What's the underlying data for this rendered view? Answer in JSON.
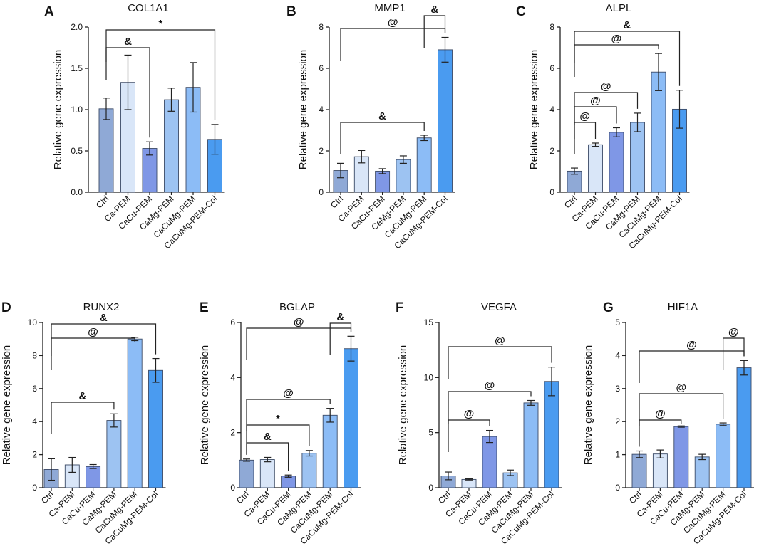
{
  "colors": [
    "#8FA9D6",
    "#D9E6F8",
    "#7F97E6",
    "#9DC3F2",
    "#8CBCF6",
    "#4A9BF0"
  ],
  "categories": [
    "Ctrl",
    "Ca-PEM",
    "CaCu-PEM",
    "CaMg-PEM",
    "CaCuMg-PEM",
    "CaCuMg-PEM-Col"
  ],
  "ylabel": "Relative gene expression",
  "chart_data": [
    {
      "panel": "A",
      "title": "COL1A1",
      "type": "bar",
      "categories": [
        "Ctrl",
        "Ca-PEM",
        "CaCu-PEM",
        "CaMg-PEM",
        "CaCuMg-PEM",
        "CaCuMg-PEM-Col"
      ],
      "values": [
        1.01,
        1.33,
        0.53,
        1.12,
        1.27,
        0.64
      ],
      "errors": [
        0.13,
        0.33,
        0.08,
        0.14,
        0.3,
        0.18
      ],
      "ylim": [
        0,
        2.0
      ],
      "yticks": [
        "0.0",
        "0.5",
        "1.0",
        "1.5",
        "2.0"
      ],
      "xlabel": "",
      "ylabel": "Relative gene expression",
      "significance": [
        {
          "from": 0,
          "to": 5,
          "label": "*"
        },
        {
          "from": 0,
          "to": 2,
          "label": "&"
        }
      ]
    },
    {
      "panel": "B",
      "title": "MMP1",
      "type": "bar",
      "categories": [
        "Ctrl",
        "Ca-PEM",
        "CaCu-PEM",
        "CaMg-PEM",
        "CaCuMg-PEM",
        "CaCuMg-PEM-Col"
      ],
      "values": [
        1.05,
        1.72,
        1.02,
        1.58,
        2.63,
        6.9
      ],
      "errors": [
        0.35,
        0.3,
        0.12,
        0.18,
        0.13,
        0.6
      ],
      "ylim": [
        0,
        8
      ],
      "yticks": [
        "0",
        "2",
        "4",
        "6",
        "8"
      ],
      "xlabel": "",
      "ylabel": "Relative gene expression",
      "significance": [
        {
          "from": 0,
          "to": 5,
          "label": "@"
        },
        {
          "from": 0,
          "to": 4,
          "label": "&"
        },
        {
          "from": 4,
          "to": 5,
          "label": "&"
        }
      ]
    },
    {
      "panel": "C",
      "title": "ALPL",
      "type": "bar",
      "categories": [
        "Ctrl",
        "Ca-PEM",
        "CaCu-PEM",
        "CaMg-PEM",
        "CaCuMg-PEM",
        "CaCuMg-PEM-Col"
      ],
      "values": [
        1.02,
        2.3,
        2.9,
        3.38,
        5.82,
        4.02
      ],
      "errors": [
        0.15,
        0.08,
        0.22,
        0.45,
        0.9,
        0.92
      ],
      "ylim": [
        0,
        8
      ],
      "yticks": [
        "0",
        "2",
        "4",
        "6",
        "8"
      ],
      "xlabel": "",
      "ylabel": "Relative gene expression",
      "significance": [
        {
          "from": 0,
          "to": 5,
          "label": "&"
        },
        {
          "from": 0,
          "to": 4,
          "label": "@"
        },
        {
          "from": 0,
          "to": 3,
          "label": "@"
        },
        {
          "from": 0,
          "to": 2,
          "label": "@"
        },
        {
          "from": 0,
          "to": 1,
          "label": "@"
        }
      ]
    },
    {
      "panel": "D",
      "title": "RUNX2",
      "type": "bar",
      "categories": [
        "Ctrl",
        "Ca-PEM",
        "CaCu-PEM",
        "CaMg-PEM",
        "CaCuMg-PEM",
        "CaCuMg-PEM-Col"
      ],
      "values": [
        1.1,
        1.38,
        1.28,
        4.07,
        9.0,
        7.1
      ],
      "errors": [
        0.65,
        0.45,
        0.12,
        0.4,
        0.1,
        0.72
      ],
      "ylim": [
        0,
        10
      ],
      "yticks": [
        "0",
        "2",
        "4",
        "6",
        "8",
        "10"
      ],
      "xlabel": "",
      "ylabel": "Relative gene expression",
      "significance": [
        {
          "from": 0,
          "to": 5,
          "label": "&"
        },
        {
          "from": 0,
          "to": 4,
          "label": "@"
        },
        {
          "from": 0,
          "to": 3,
          "label": "&"
        }
      ]
    },
    {
      "panel": "E",
      "title": "BGLAP",
      "type": "bar",
      "categories": [
        "Ctrl",
        "Ca-PEM",
        "CaCu-PEM",
        "CaMg-PEM",
        "CaCuMg-PEM",
        "CaCuMg-PEM-Col"
      ],
      "values": [
        1.0,
        1.02,
        0.42,
        1.25,
        2.63,
        5.05
      ],
      "errors": [
        0.04,
        0.08,
        0.04,
        0.1,
        0.25,
        0.45
      ],
      "ylim": [
        0,
        6
      ],
      "yticks": [
        "0",
        "2",
        "4",
        "6"
      ],
      "xlabel": "",
      "ylabel": "Relative gene expression",
      "significance": [
        {
          "from": 0,
          "to": 5,
          "label": "@"
        },
        {
          "from": 4,
          "to": 5,
          "label": "&"
        },
        {
          "from": 0,
          "to": 4,
          "label": "@"
        },
        {
          "from": 0,
          "to": 3,
          "label": "*"
        },
        {
          "from": 0,
          "to": 2,
          "label": "&"
        }
      ]
    },
    {
      "panel": "F",
      "title": "VEGFA",
      "type": "bar",
      "categories": [
        "Ctrl",
        "Ca-PEM",
        "CaCu-PEM",
        "CaMg-PEM",
        "CaCuMg-PEM",
        "CaCuMg-PEM-Col"
      ],
      "values": [
        1.07,
        0.75,
        4.65,
        1.35,
        7.7,
        9.65
      ],
      "errors": [
        0.35,
        0.05,
        0.55,
        0.25,
        0.22,
        1.3
      ],
      "ylim": [
        0,
        15
      ],
      "yticks": [
        "0",
        "5",
        "10",
        "15"
      ],
      "xlabel": "",
      "ylabel": "Relative gene expression",
      "significance": [
        {
          "from": 0,
          "to": 5,
          "label": "@"
        },
        {
          "from": 0,
          "to": 4,
          "label": "@"
        },
        {
          "from": 0,
          "to": 2,
          "label": "@"
        }
      ]
    },
    {
      "panel": "G",
      "title": "HIF1A",
      "type": "bar",
      "categories": [
        "Ctrl",
        "Ca-PEM",
        "CaCu-PEM",
        "CaMg-PEM",
        "CaCuMg-PEM",
        "CaCuMg-PEM-Col"
      ],
      "values": [
        1.01,
        1.02,
        1.85,
        0.93,
        1.92,
        3.63
      ],
      "errors": [
        0.1,
        0.12,
        0.02,
        0.08,
        0.04,
        0.22
      ],
      "ylim": [
        0,
        5
      ],
      "yticks": [
        "0",
        "1",
        "2",
        "3",
        "4",
        "5"
      ],
      "xlabel": "",
      "ylabel": "Relative gene expression",
      "significance": [
        {
          "from": 0,
          "to": 5,
          "label": "@"
        },
        {
          "from": 4,
          "to": 5,
          "label": "@"
        },
        {
          "from": 0,
          "to": 4,
          "label": "@"
        },
        {
          "from": 0,
          "to": 2,
          "label": "@"
        }
      ]
    }
  ]
}
